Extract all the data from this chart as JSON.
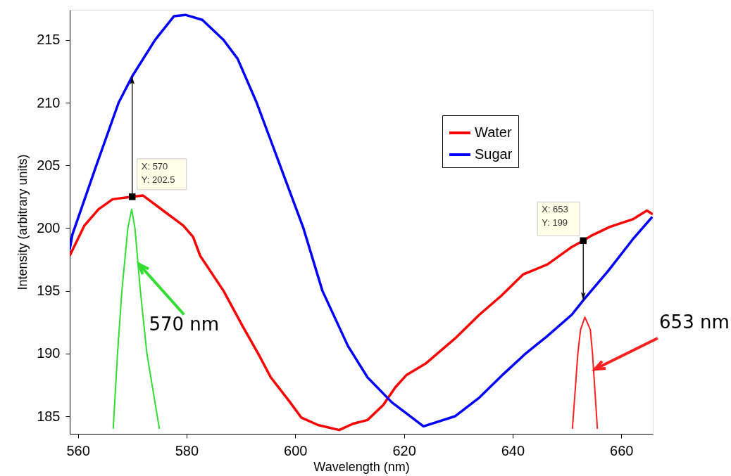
{
  "chart_data": {
    "type": "line",
    "xlabel": "Wavelength (nm)",
    "ylabel": "Intensity (arbitrary units)",
    "xlim": [
      558.5,
      665.8
    ],
    "ylim": [
      183.6,
      217.4
    ],
    "xticks": [
      560,
      580,
      600,
      620,
      640,
      660
    ],
    "yticks": [
      185,
      190,
      195,
      200,
      205,
      210,
      215
    ],
    "grid": false,
    "legend": "top right",
    "series": [
      {
        "name": "Water",
        "color": "#ff0000",
        "x": [
          558.5,
          561.2,
          563.8,
          566.4,
          570,
          572,
          576,
          579.4,
          581.2,
          582.5,
          586.8,
          590.3,
          593.3,
          595.5,
          598.9,
          601.1,
          604.2,
          608.1,
          610.6,
          613.3,
          616.2,
          618.4,
          620.5,
          624,
          629.4,
          633.9,
          637.9,
          641.9,
          646.4,
          650.9,
          653,
          654.5,
          657.9,
          662.1,
          664.7,
          665.8
        ],
        "values": [
          197.8,
          200.2,
          201.5,
          202.3,
          202.5,
          202.6,
          201.3,
          200.2,
          199.3,
          197.8,
          195,
          192.2,
          189.9,
          188.1,
          186.2,
          184.9,
          184.3,
          183.9,
          184.4,
          184.7,
          185.9,
          187.3,
          188.3,
          189.2,
          191.2,
          193.1,
          194.6,
          196.3,
          197.1,
          198.5,
          199,
          199.4,
          200.1,
          200.7,
          201.4,
          201.1
        ]
      },
      {
        "name": "Sugar",
        "color": "#0000ff",
        "x": [
          558.5,
          559,
          563.4,
          567.5,
          570,
          574.2,
          577.7,
          579.8,
          582.9,
          586.8,
          589.4,
          592.9,
          595.4,
          597.2,
          601.5,
          605,
          609.7,
          613.3,
          617.8,
          623.6,
          629.4,
          633.9,
          638.4,
          642.4,
          646.4,
          650.9,
          653.1,
          657.6,
          662.1,
          665.7
        ],
        "values": [
          198.3,
          199.5,
          205,
          210,
          212.1,
          215,
          216.9,
          217,
          216.6,
          215,
          213.5,
          210,
          207.1,
          205,
          200,
          195,
          190.6,
          188.1,
          186.1,
          184.2,
          185,
          186.5,
          188.4,
          190,
          191.4,
          193.1,
          194.3,
          196.6,
          199.1,
          200.9
        ]
      },
      {
        "color": "#33dd33",
        "x": [
          566.5,
          567.3,
          568.1,
          569.2,
          569.9,
          570.5,
          571.5,
          572.7,
          575
        ],
        "values": [
          184,
          190,
          195,
          200,
          201.5,
          200,
          195,
          190,
          184
        ]
      },
      {
        "color": "#ff2020",
        "x": [
          651,
          652,
          652.5,
          653.3,
          654.3,
          654.7,
          655.6
        ],
        "values": [
          184,
          190,
          191.9,
          192.9,
          191.9,
          190,
          184
        ]
      }
    ],
    "annotations": [
      {
        "text": "X: 570\nY: 202.5",
        "x": 570,
        "y": 202.5
      },
      {
        "text": "X: 653\nY: 199",
        "x": 653,
        "y": 199
      },
      {
        "text": "570 nm",
        "x": 571.1,
        "y": 197.2
      },
      {
        "text": "653 nm",
        "x": 654.9,
        "y": 188.7
      }
    ]
  }
}
